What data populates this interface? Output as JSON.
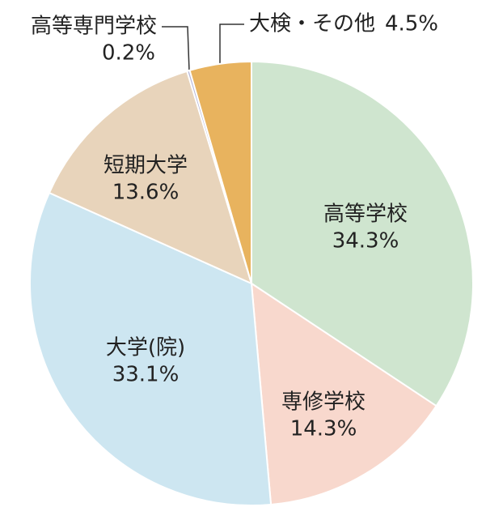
{
  "chart_data": {
    "type": "pie",
    "categories": [
      "高等学校",
      "専修学校",
      "大学(院)",
      "短期大学",
      "高等専門学校",
      "大検・その他"
    ],
    "values": [
      34.3,
      14.3,
      33.1,
      13.6,
      0.2,
      4.5
    ],
    "value_labels": [
      "34.3%",
      "14.3%",
      "33.1%",
      "13.6%",
      "0.2%",
      "4.5%"
    ],
    "colors": [
      "#cfe5cf",
      "#f8d8cd",
      "#cde6f1",
      "#e8d4bb",
      "#b9b9d9",
      "#e8b35e"
    ]
  }
}
